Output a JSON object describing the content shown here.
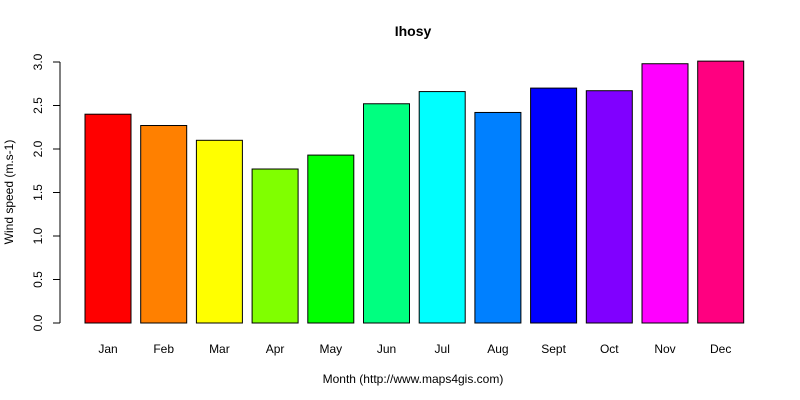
{
  "chart_data": {
    "type": "bar",
    "title": "Ihosy",
    "xlabel": "Month (http://www.maps4gis.com)",
    "ylabel": "Wind speed (m.s-1)",
    "categories": [
      "Jan",
      "Feb",
      "Mar",
      "Apr",
      "May",
      "Jun",
      "Jul",
      "Aug",
      "Sept",
      "Oct",
      "Nov",
      "Dec"
    ],
    "values": [
      2.4,
      2.27,
      2.1,
      1.77,
      1.93,
      2.52,
      2.66,
      2.42,
      2.7,
      2.67,
      2.98,
      3.01
    ],
    "colors": [
      "#ff0000",
      "#ff8000",
      "#ffff00",
      "#80ff00",
      "#00ff00",
      "#00ff80",
      "#00ffff",
      "#0080ff",
      "#0000ff",
      "#8000ff",
      "#ff00ff",
      "#ff0080"
    ],
    "yticks": [
      "0.0",
      "0.5",
      "1.0",
      "1.5",
      "2.0",
      "2.5",
      "3.0"
    ],
    "ylim": [
      0,
      3.0
    ],
    "grid": false,
    "legend": "none"
  }
}
